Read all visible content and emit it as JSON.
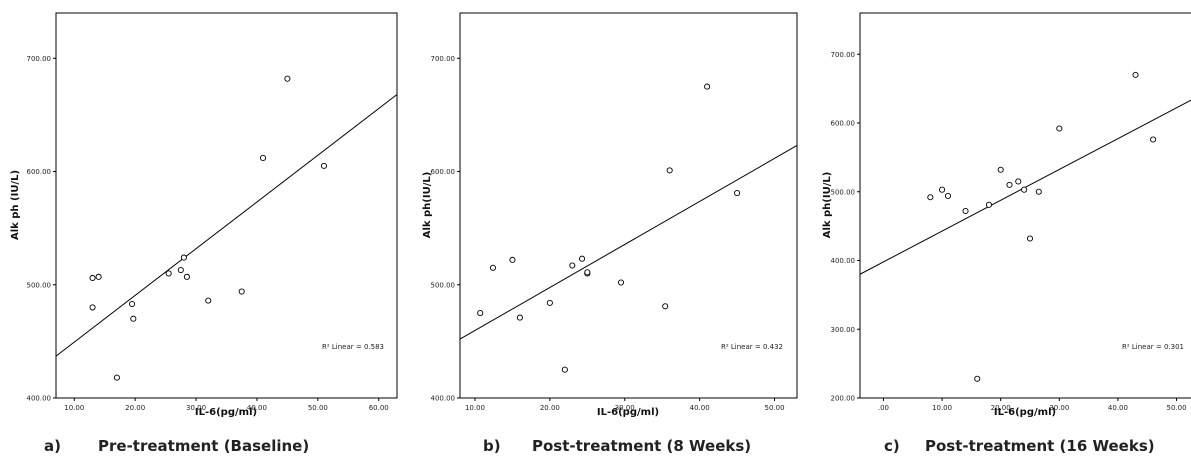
{
  "chart_data": [
    {
      "type": "scatter",
      "caption_letter": "a)",
      "caption_text": "Pre-treatment (Baseline)",
      "xlabel": "IL-6(pg/ml)",
      "ylabel": "Alk ph (IU/L)",
      "xlim": [
        7,
        63
      ],
      "ylim": [
        400,
        740
      ],
      "xticks": [
        10,
        20,
        30,
        40,
        50,
        60
      ],
      "xtick_labels": [
        "10.00",
        "20.00",
        "30.00",
        "40.00",
        "50.00",
        "60.00"
      ],
      "yticks": [
        400,
        500,
        600,
        700
      ],
      "ytick_labels": [
        "400.00",
        "500.00",
        "600.00",
        "700.00"
      ],
      "r2_text": "R² Linear = 0.583",
      "fit_line": [
        [
          7,
          437
        ],
        [
          63,
          668
        ]
      ],
      "points": [
        [
          13,
          480
        ],
        [
          13,
          506
        ],
        [
          14,
          507
        ],
        [
          17,
          418
        ],
        [
          19.5,
          483
        ],
        [
          19.7,
          470
        ],
        [
          25.5,
          510
        ],
        [
          27.5,
          513
        ],
        [
          28,
          524
        ],
        [
          28.5,
          507
        ],
        [
          32,
          486
        ],
        [
          37.5,
          494
        ],
        [
          41,
          612
        ],
        [
          45,
          682
        ],
        [
          51,
          605
        ]
      ]
    },
    {
      "type": "scatter",
      "caption_letter": "b)",
      "caption_text": "Post-treatment (8 Weeks)",
      "xlabel": "IL-6(pg/ml)",
      "ylabel": "Alk ph(IU/L)",
      "xlim": [
        8,
        53
      ],
      "ylim": [
        400,
        740
      ],
      "xticks": [
        10,
        20,
        30,
        40,
        50
      ],
      "xtick_labels": [
        "10.00",
        "20.00",
        "30.00",
        "40.00",
        "50.00"
      ],
      "yticks": [
        400,
        500,
        600,
        700
      ],
      "ytick_labels": [
        "400.00",
        "500.00",
        "600.00",
        "700.00"
      ],
      "r2_text": "R² Linear = 0.432",
      "fit_line": [
        [
          8,
          452
        ],
        [
          53,
          623
        ]
      ],
      "points": [
        [
          10.7,
          475
        ],
        [
          12.4,
          515
        ],
        [
          15,
          522
        ],
        [
          16,
          471
        ],
        [
          20,
          484
        ],
        [
          22,
          425
        ],
        [
          23,
          517
        ],
        [
          24.3,
          523
        ],
        [
          25,
          510
        ],
        [
          25,
          511
        ],
        [
          29.5,
          502
        ],
        [
          35.4,
          481
        ],
        [
          36,
          601
        ],
        [
          41,
          675
        ],
        [
          45,
          581
        ]
      ]
    },
    {
      "type": "scatter",
      "caption_letter": "c)",
      "caption_text": "Post-treatment (16 Weeks)",
      "xlabel": "IL-6(pg/ml)",
      "ylabel": "Alk ph(IU/L)",
      "xlim": [
        -4,
        54
      ],
      "ylim": [
        200,
        760
      ],
      "xticks": [
        0,
        10,
        20,
        30,
        40,
        50
      ],
      "xtick_labels": [
        ".00",
        "10.00",
        "20.00",
        "30.00",
        "40.00",
        "50.00"
      ],
      "yticks": [
        200,
        300,
        400,
        500,
        600,
        700
      ],
      "ytick_labels": [
        "200.00",
        "300.00",
        "400.00",
        "500.00",
        "600.00",
        "700.00"
      ],
      "r2_text": "R² Linear = 0.301",
      "fit_line": [
        [
          -4,
          380
        ],
        [
          54,
          640
        ]
      ],
      "points": [
        [
          8,
          492
        ],
        [
          10,
          503
        ],
        [
          11,
          494
        ],
        [
          14,
          472
        ],
        [
          16,
          228
        ],
        [
          18,
          481
        ],
        [
          20,
          532
        ],
        [
          21.5,
          510
        ],
        [
          23,
          515
        ],
        [
          24,
          503
        ],
        [
          25,
          432
        ],
        [
          26.5,
          500
        ],
        [
          30,
          592
        ],
        [
          43,
          670
        ],
        [
          46,
          576
        ]
      ]
    }
  ]
}
